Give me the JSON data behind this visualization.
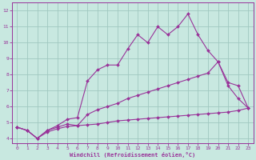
{
  "xlabel": "Windchill (Refroidissement éolien,°C)",
  "bg_color": "#c8e8e0",
  "line_color": "#993399",
  "grid_color": "#a0c8c0",
  "xlim": [
    -0.5,
    23.5
  ],
  "ylim": [
    3.7,
    12.5
  ],
  "xticks": [
    0,
    1,
    2,
    3,
    4,
    5,
    6,
    7,
    8,
    9,
    10,
    11,
    12,
    13,
    14,
    15,
    16,
    17,
    18,
    19,
    20,
    21,
    22,
    23
  ],
  "yticks": [
    4,
    5,
    6,
    7,
    8,
    9,
    10,
    11,
    12
  ],
  "line1_x": [
    0,
    1,
    2,
    3,
    4,
    5,
    6,
    7,
    8,
    9,
    10,
    11,
    12,
    13,
    14,
    15,
    16,
    17,
    18,
    19,
    20,
    21,
    22,
    23
  ],
  "line1_y": [
    4.7,
    4.5,
    4.0,
    4.5,
    4.8,
    5.2,
    5.3,
    7.6,
    8.3,
    8.6,
    8.6,
    9.6,
    10.5,
    10.0,
    11.0,
    10.5,
    11.0,
    11.8,
    10.5,
    9.5,
    8.8,
    7.3,
    6.5,
    5.9
  ],
  "line2_x": [
    0,
    1,
    2,
    3,
    4,
    5,
    6,
    7,
    8,
    9,
    10,
    11,
    12,
    13,
    14,
    15,
    16,
    17,
    18,
    19,
    20,
    21,
    22,
    23
  ],
  "line2_y": [
    4.7,
    4.5,
    4.0,
    4.5,
    4.7,
    4.9,
    4.8,
    5.5,
    5.8,
    6.0,
    6.2,
    6.5,
    6.7,
    6.9,
    7.1,
    7.3,
    7.5,
    7.7,
    7.9,
    8.1,
    8.8,
    7.5,
    7.3,
    5.9
  ],
  "line3_x": [
    0,
    1,
    2,
    3,
    4,
    5,
    6,
    7,
    8,
    9,
    10,
    11,
    12,
    13,
    14,
    15,
    16,
    17,
    18,
    19,
    20,
    21,
    22,
    23
  ],
  "line3_y": [
    4.7,
    4.5,
    4.0,
    4.4,
    4.6,
    4.75,
    4.8,
    4.85,
    4.9,
    5.0,
    5.1,
    5.15,
    5.2,
    5.25,
    5.3,
    5.35,
    5.4,
    5.45,
    5.5,
    5.55,
    5.6,
    5.65,
    5.75,
    5.9
  ]
}
